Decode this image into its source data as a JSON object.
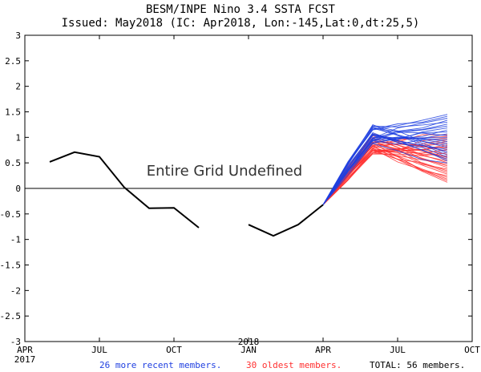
{
  "chart_data": {
    "type": "line",
    "title": "BESM/INPE Nino 3.4 SSTA FCST",
    "subtitle": "Issued: May2018 (IC: Apr2018, Lon:-145,Lat:0,dt:25,5)",
    "annotation": "Entire Grid Undefined",
    "ylim": [
      -3,
      3
    ],
    "yticks": [
      "3",
      "2.5",
      "2",
      "1.5",
      "1",
      "0.5",
      "0",
      "-0.5",
      "-1",
      "-1.5",
      "-2",
      "-2.5",
      "-3"
    ],
    "xlim": [
      0,
      18
    ],
    "xticks": [
      {
        "month": 0,
        "label": "APR",
        "year": "2017"
      },
      {
        "month": 3,
        "label": "JUL",
        "year": ""
      },
      {
        "month": 6,
        "label": "OCT",
        "year": ""
      },
      {
        "month": 9,
        "label": "JAN",
        "year": "2018"
      },
      {
        "month": 12,
        "label": "APR",
        "year": ""
      },
      {
        "month": 15,
        "label": "JUL",
        "year": ""
      },
      {
        "month": 18,
        "label": "OCT",
        "year": ""
      }
    ],
    "observed": [
      {
        "month": 1,
        "value": 0.52
      },
      {
        "month": 2,
        "value": 0.71
      },
      {
        "month": 3,
        "value": 0.62
      },
      {
        "month": 4,
        "value": 0.02
      },
      {
        "month": 5,
        "value": -0.39
      },
      {
        "month": 6,
        "value": -0.38
      },
      {
        "month": 7,
        "value": -0.77
      },
      {
        "month": 8,
        "value": null
      },
      {
        "month": 9,
        "value": -0.71
      },
      {
        "month": 10,
        "value": -0.93
      },
      {
        "month": 11,
        "value": -0.71
      },
      {
        "month": 12,
        "value": -0.32
      }
    ],
    "forecast_months": [
      12,
      13,
      14,
      15,
      16,
      17
    ],
    "forecast_start_value": -0.32,
    "recent_members": {
      "name": "26 more recent members.",
      "color": "#1f3fe0",
      "count": 26,
      "end_min": 0.5,
      "end_max": 1.45,
      "peak_min": 0.8,
      "peak_max": 1.25
    },
    "oldest_members": {
      "name": "30 oldest members.",
      "color": "#ff3030",
      "count": 30,
      "end_min": 0.12,
      "end_max": 1.05,
      "peak_min": 0.6,
      "peak_max": 1.05
    },
    "total_label": "TOTAL: 56 members.",
    "grid": false,
    "zero_line": true
  }
}
